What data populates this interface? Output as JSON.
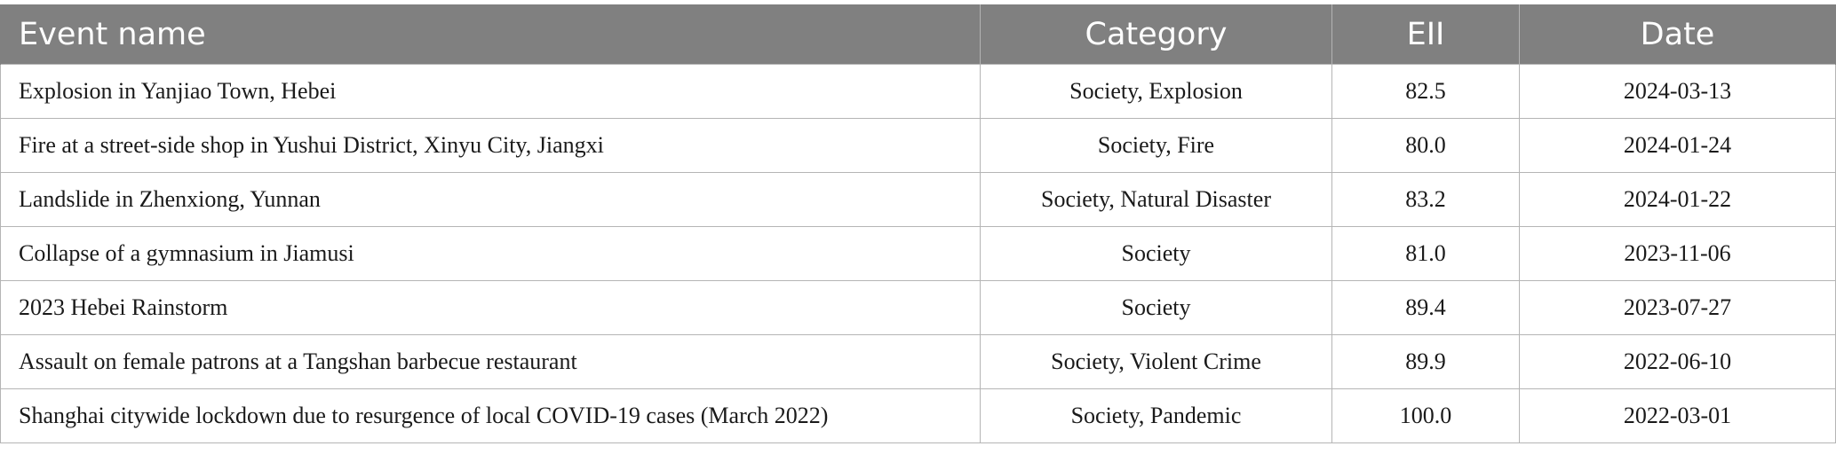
{
  "table": {
    "headers": {
      "event_name": "Event name",
      "category": "Category",
      "eii": "EII",
      "date": "Date"
    },
    "rows": [
      {
        "event_name": "Explosion in Yanjiao Town, Hebei",
        "category": "Society, Explosion",
        "eii": "82.5",
        "date": "2024-03-13"
      },
      {
        "event_name": "Fire at a street-side shop in Yushui District, Xinyu City, Jiangxi",
        "category": "Society, Fire",
        "eii": "80.0",
        "date": "2024-01-24"
      },
      {
        "event_name": "Landslide in Zhenxiong, Yunnan",
        "category": "Society, Natural Disaster",
        "eii": "83.2",
        "date": "2024-01-22"
      },
      {
        "event_name": "Collapse of a gymnasium in Jiamusi",
        "category": "Society",
        "eii": "81.0",
        "date": "2023-11-06"
      },
      {
        "event_name": "2023 Hebei Rainstorm",
        "category": "Society",
        "eii": "89.4",
        "date": "2023-07-27"
      },
      {
        "event_name": "Assault on female patrons at a Tangshan barbecue restaurant",
        "category": "Society, Violent Crime",
        "eii": "89.9",
        "date": "2022-06-10"
      },
      {
        "event_name": "Shanghai citywide lockdown due to resurgence of local COVID-19 cases (March 2022)",
        "category": "Society, Pandemic",
        "eii": "100.0",
        "date": "2022-03-01"
      }
    ]
  }
}
